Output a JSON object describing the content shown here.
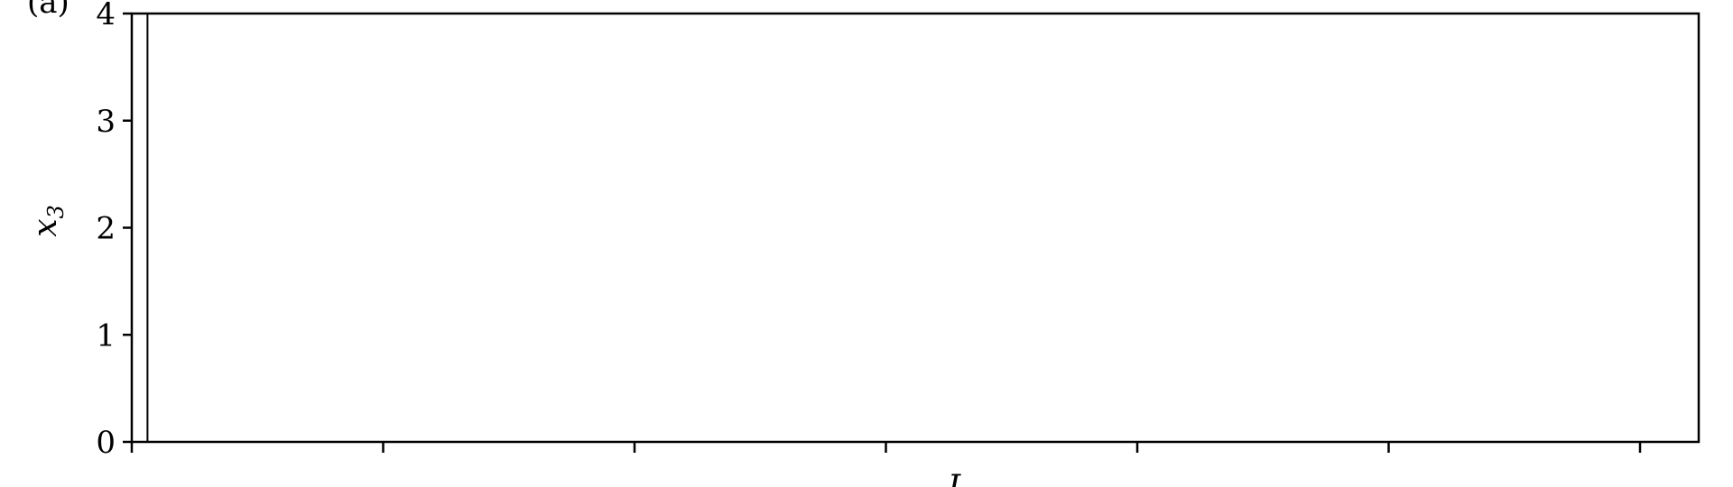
{
  "chart_data": {
    "type": "line",
    "panel_label": "(a)",
    "ylabel_main": "x",
    "ylabel_sub": "3",
    "xlabel_partial": "L",
    "ylim": [
      0,
      4
    ],
    "yticks": [
      "0",
      "1",
      "2",
      "3",
      "4"
    ],
    "xtick_count": 7,
    "grid": false,
    "series": [
      {
        "x": [
          0.01,
          0.01
        ],
        "y": [
          0,
          4
        ],
        "color": "#000000"
      }
    ]
  }
}
